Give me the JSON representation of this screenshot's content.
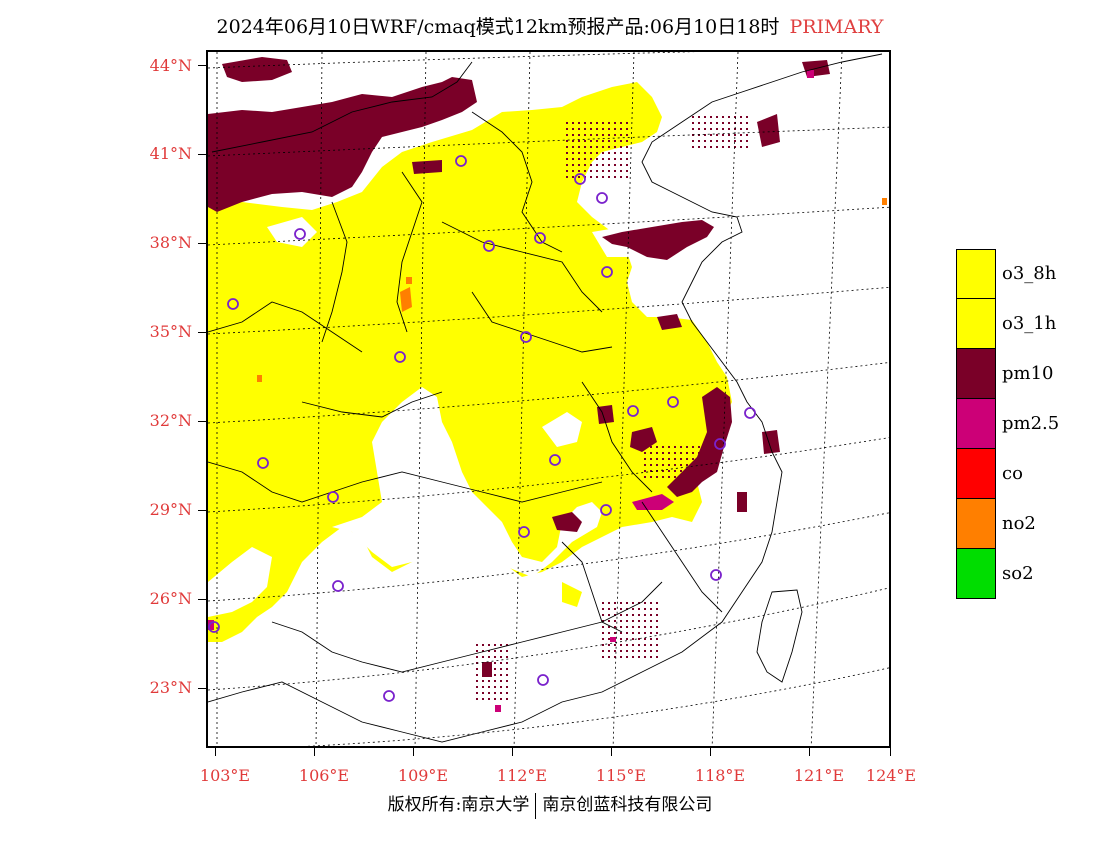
{
  "title": {
    "main": "2024年06月10日WRF/cmaq模式12km预报产品:06月10日18时",
    "tag": "PRIMARY"
  },
  "axes": {
    "lat_labels": [
      "44°N",
      "41°N",
      "38°N",
      "35°N",
      "32°N",
      "29°N",
      "26°N",
      "23°N"
    ],
    "lon_labels": [
      "103°E",
      "106°E",
      "109°E",
      "112°E",
      "115°E",
      "118°E",
      "121°E",
      "124°E"
    ]
  },
  "legend": {
    "items": [
      {
        "label": "o3_8h",
        "color": "#ffff00"
      },
      {
        "label": "o3_1h",
        "color": "#ffff00"
      },
      {
        "label": "pm10",
        "color": "#7a0028"
      },
      {
        "label": "pm2.5",
        "color": "#cc0077"
      },
      {
        "label": "co",
        "color": "#ff0000"
      },
      {
        "label": "no2",
        "color": "#ff7f00"
      },
      {
        "label": "so2",
        "color": "#00dd00"
      }
    ]
  },
  "colors": {
    "o3": "#ffff00",
    "pm10": "#7a0028",
    "pm25": "#cc0077",
    "no2": "#ff7f00",
    "station": "#7a22cc",
    "axis_label": "#e03a3a"
  },
  "footer": {
    "left": "版权所有:南京大学",
    "right": "南京创蓝科技有限公司"
  }
}
